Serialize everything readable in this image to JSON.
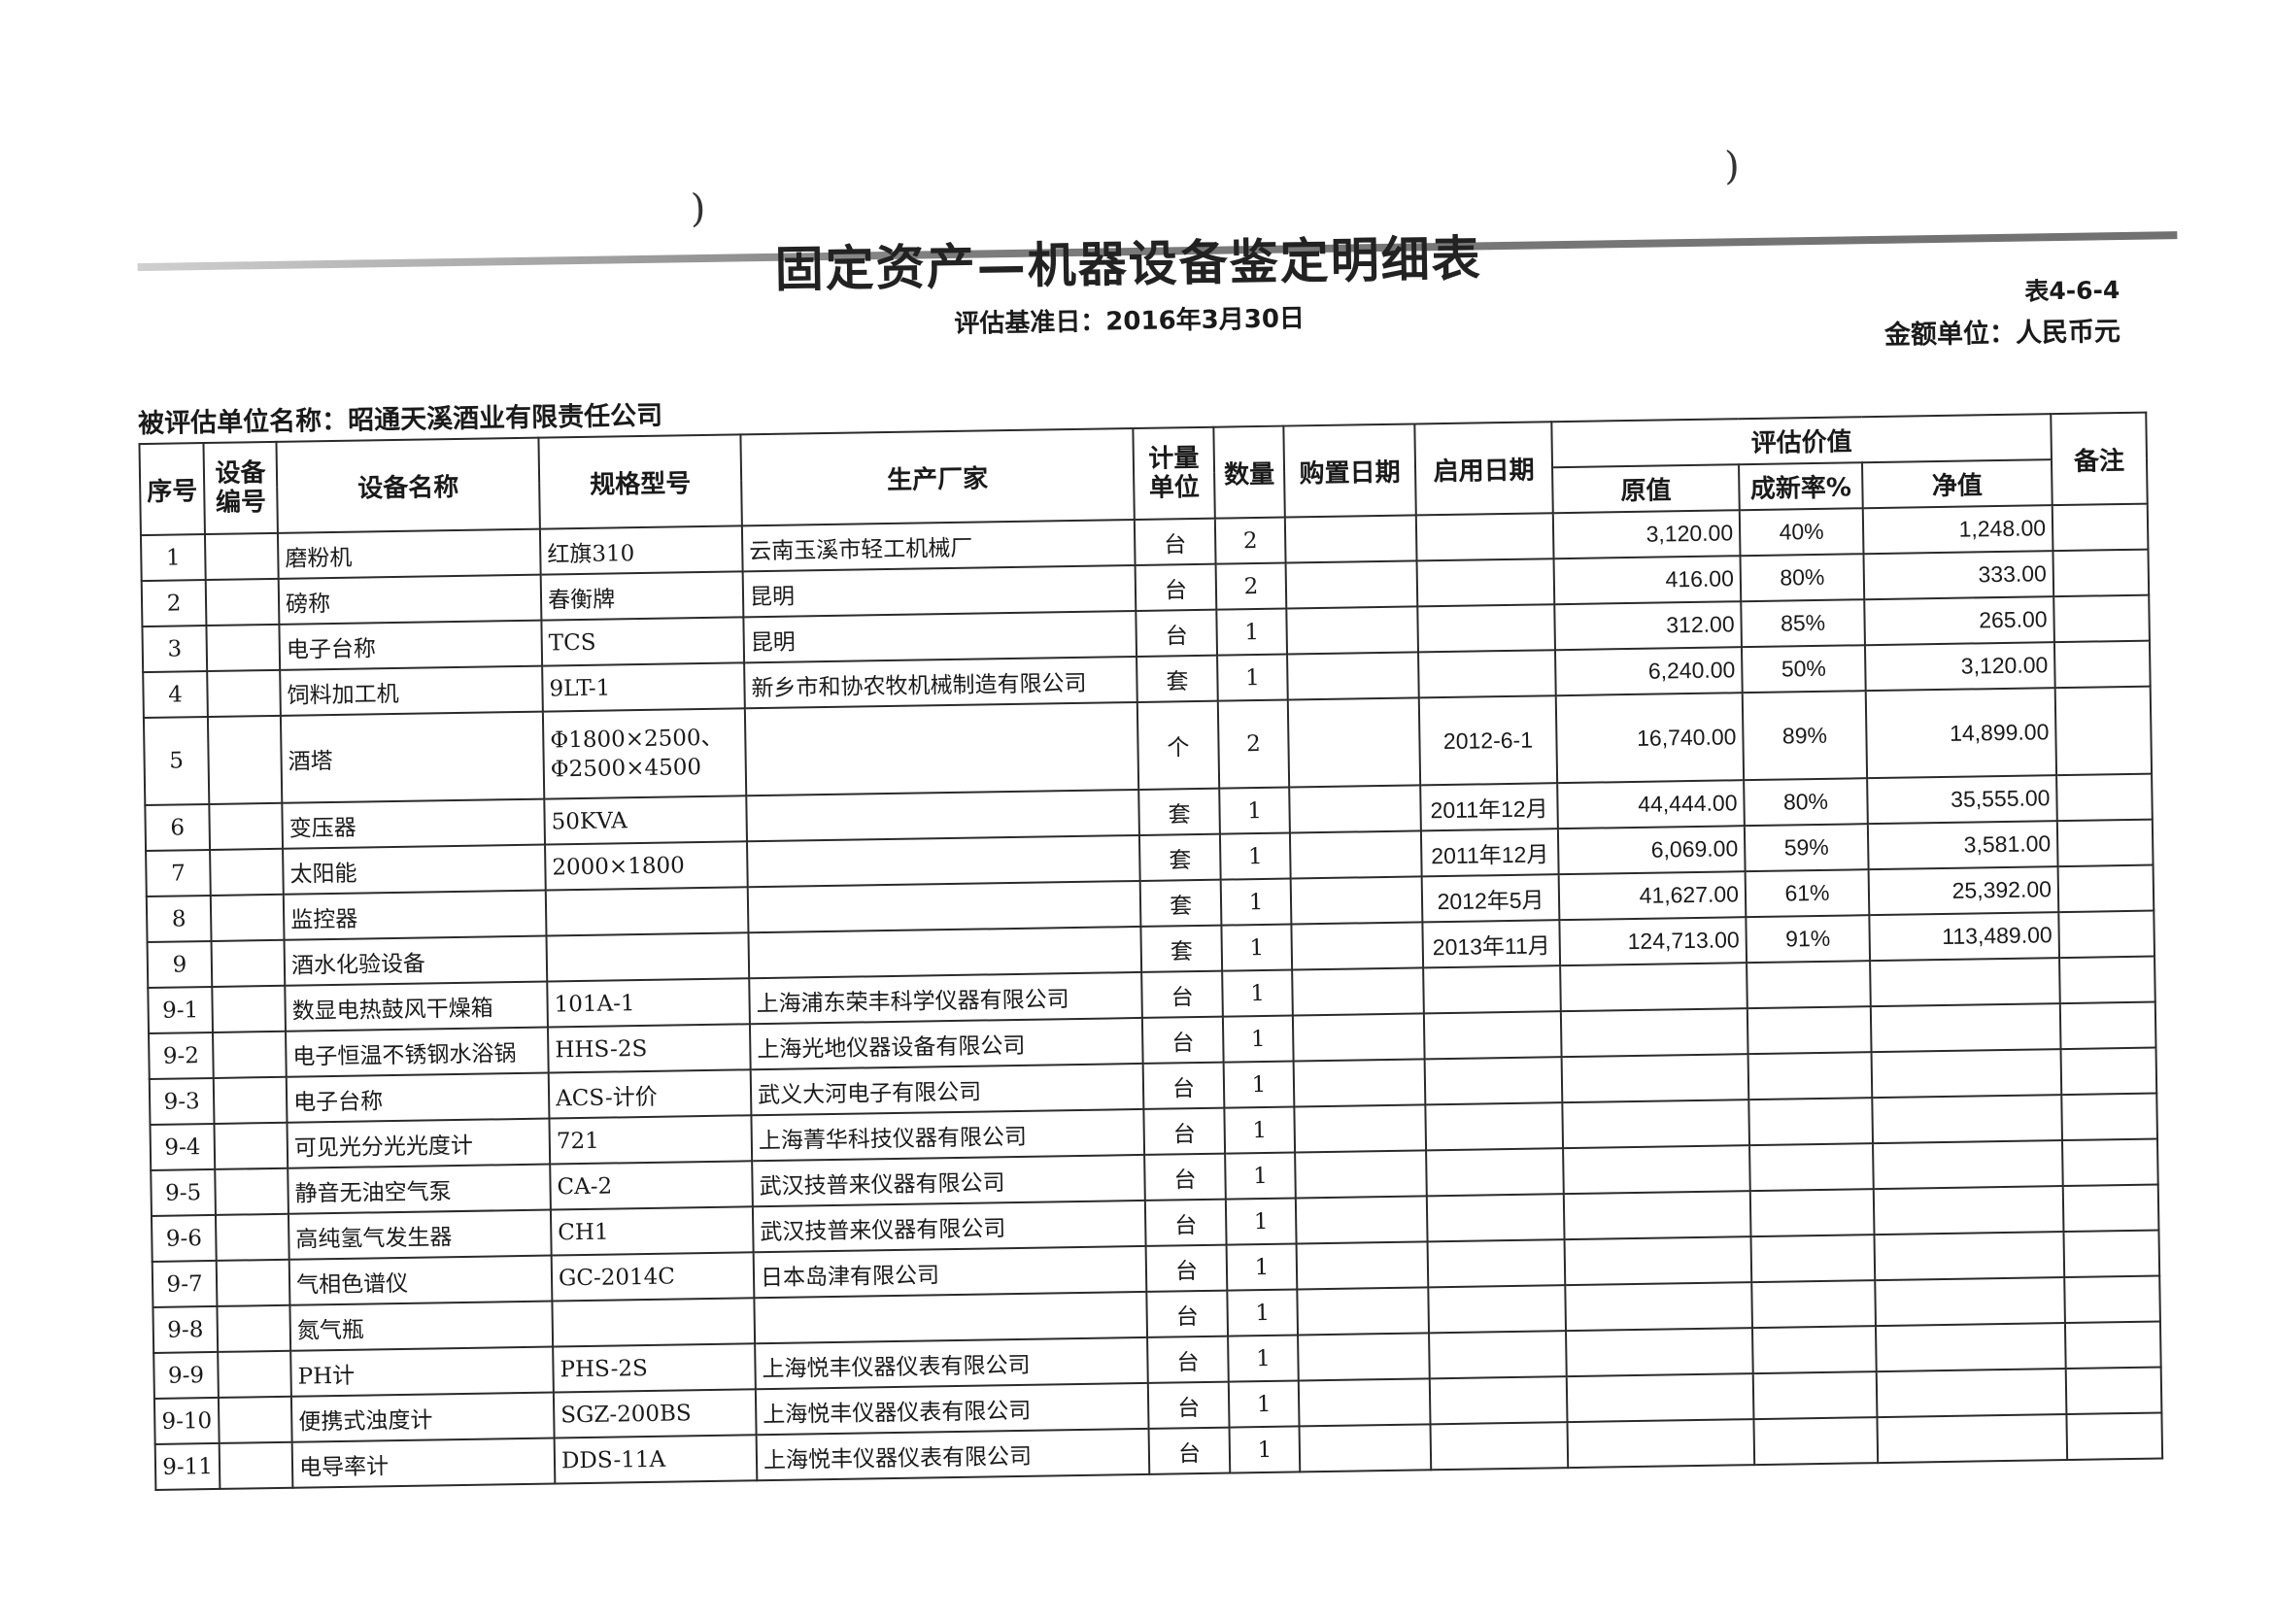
{
  "document": {
    "title": "固定资产—机器设备鉴定明细表",
    "base_date": "评估基准日：2016年3月30日",
    "table_no": "表4-6-4",
    "currency_unit": "金额单位：人民币元",
    "entity": "被评估单位名称：昭通天溪酒业有限责任公司"
  },
  "table": {
    "headers": {
      "seq": "序号",
      "equip_no": "设备编号",
      "name": "设备名称",
      "spec": "规格型号",
      "maker": "生产厂家",
      "unit": "计量单位",
      "qty": "数量",
      "purchase_date": "购置日期",
      "start_date": "启用日期",
      "valuation": "评估价值",
      "original": "原值",
      "rate": "成新率%",
      "net": "净值",
      "remark": "备注"
    },
    "rows": [
      {
        "seq": "1",
        "name": "磨粉机",
        "spec": "红旗310",
        "maker": "云南玉溪市轻工机械厂",
        "unit": "台",
        "qty": "2",
        "start": "",
        "original": "3,120.00",
        "rate": "40%",
        "net": "1,248.00"
      },
      {
        "seq": "2",
        "name": "磅称",
        "spec": "春衡牌",
        "maker": "昆明",
        "unit": "台",
        "qty": "2",
        "start": "",
        "original": "416.00",
        "rate": "80%",
        "net": "333.00"
      },
      {
        "seq": "3",
        "name": "电子台称",
        "spec": "TCS",
        "maker": "昆明",
        "unit": "台",
        "qty": "1",
        "start": "",
        "original": "312.00",
        "rate": "85%",
        "net": "265.00"
      },
      {
        "seq": "4",
        "name": "饲料加工机",
        "spec": "9LT-1",
        "maker": "新乡市和协农牧机械制造有限公司",
        "unit": "套",
        "qty": "1",
        "start": "",
        "original": "6,240.00",
        "rate": "50%",
        "net": "3,120.00"
      },
      {
        "seq": "5",
        "name": "酒塔",
        "spec": "Φ1800×2500、Φ2500×4500",
        "maker": "",
        "unit": "个",
        "qty": "2",
        "start": "2012-6-1",
        "original": "16,740.00",
        "rate": "89%",
        "net": "14,899.00"
      },
      {
        "seq": "6",
        "name": "变压器",
        "spec": "50KVA",
        "maker": "",
        "unit": "套",
        "qty": "1",
        "start": "2011年12月",
        "original": "44,444.00",
        "rate": "80%",
        "net": "35,555.00"
      },
      {
        "seq": "7",
        "name": "太阳能",
        "spec": "2000×1800",
        "maker": "",
        "unit": "套",
        "qty": "1",
        "start": "2011年12月",
        "original": "6,069.00",
        "rate": "59%",
        "net": "3,581.00"
      },
      {
        "seq": "8",
        "name": "监控器",
        "spec": "",
        "maker": "",
        "unit": "套",
        "qty": "1",
        "start": "2012年5月",
        "original": "41,627.00",
        "rate": "61%",
        "net": "25,392.00"
      },
      {
        "seq": "9",
        "name": "酒水化验设备",
        "spec": "",
        "maker": "",
        "unit": "套",
        "qty": "1",
        "start": "2013年11月",
        "original": "124,713.00",
        "rate": "91%",
        "net": "113,489.00"
      },
      {
        "seq": "9-1",
        "name": "数显电热鼓风干燥箱",
        "spec": "101A-1",
        "maker": "上海浦东荣丰科学仪器有限公司",
        "unit": "台",
        "qty": "1",
        "start": "",
        "original": "",
        "rate": "",
        "net": ""
      },
      {
        "seq": "9-2",
        "name": "电子恒温不锈钢水浴锅",
        "spec": "HHS-2S",
        "maker": "上海光地仪器设备有限公司",
        "unit": "台",
        "qty": "1",
        "start": "",
        "original": "",
        "rate": "",
        "net": ""
      },
      {
        "seq": "9-3",
        "name": "电子台称",
        "spec": "ACS-计价",
        "maker": "武义大河电子有限公司",
        "unit": "台",
        "qty": "1",
        "start": "",
        "original": "",
        "rate": "",
        "net": ""
      },
      {
        "seq": "9-4",
        "name": "可见光分光光度计",
        "spec": "721",
        "maker": "上海菁华科技仪器有限公司",
        "unit": "台",
        "qty": "1",
        "start": "",
        "original": "",
        "rate": "",
        "net": ""
      },
      {
        "seq": "9-5",
        "name": "静音无油空气泵",
        "spec": "CA-2",
        "maker": "武汉技普来仪器有限公司",
        "unit": "台",
        "qty": "1",
        "start": "",
        "original": "",
        "rate": "",
        "net": ""
      },
      {
        "seq": "9-6",
        "name": "高纯氢气发生器",
        "spec": "CH1",
        "maker": "武汉技普来仪器有限公司",
        "unit": "台",
        "qty": "1",
        "start": "",
        "original": "",
        "rate": "",
        "net": ""
      },
      {
        "seq": "9-7",
        "name": "气相色谱仪",
        "spec": "GC-2014C",
        "maker": "日本岛津有限公司",
        "unit": "台",
        "qty": "1",
        "start": "",
        "original": "",
        "rate": "",
        "net": ""
      },
      {
        "seq": "9-8",
        "name": "氮气瓶",
        "spec": "",
        "maker": "",
        "unit": "台",
        "qty": "1",
        "start": "",
        "original": "",
        "rate": "",
        "net": ""
      },
      {
        "seq": "9-9",
        "name": "PH计",
        "spec": "PHS-2S",
        "maker": "上海悦丰仪器仪表有限公司",
        "unit": "台",
        "qty": "1",
        "start": "",
        "original": "",
        "rate": "",
        "net": ""
      },
      {
        "seq": "9-10",
        "name": "便携式浊度计",
        "spec": "SGZ-200BS",
        "maker": "上海悦丰仪器仪表有限公司",
        "unit": "台",
        "qty": "1",
        "start": "",
        "original": "",
        "rate": "",
        "net": ""
      },
      {
        "seq": "9-11",
        "name": "电导率计",
        "spec": "DDS-11A",
        "maker": "上海悦丰仪器仪表有限公司",
        "unit": "台",
        "qty": "1",
        "start": "",
        "original": "",
        "rate": "",
        "net": ""
      }
    ]
  }
}
